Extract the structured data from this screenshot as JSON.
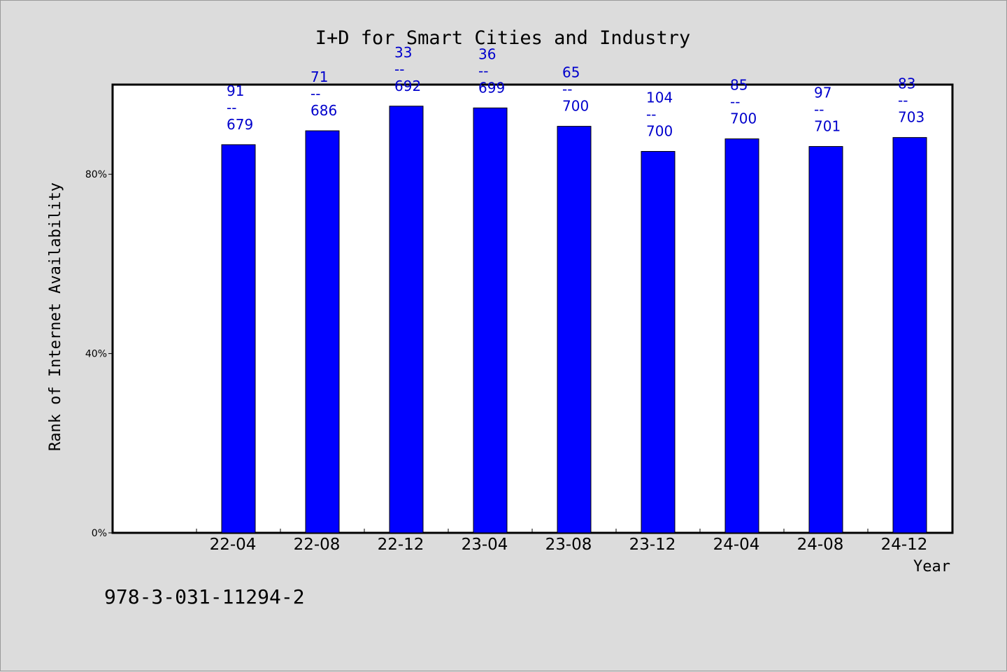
{
  "footer_code": "978-3-031-11294-2",
  "chart_data": {
    "type": "bar",
    "title": "I+D for Smart Cities and Industry",
    "xlabel": "Year",
    "ylabel": "Rank of Internet Availability",
    "categories": [
      "22-04",
      "22-08",
      "22-12",
      "23-04",
      "23-08",
      "23-12",
      "24-04",
      "24-08",
      "24-12"
    ],
    "values": [
      86.6,
      89.7,
      95.2,
      94.8,
      90.7,
      85.1,
      87.9,
      86.2,
      88.2
    ],
    "data_labels": [
      [
        "91",
        "--",
        "679"
      ],
      [
        "71",
        "--",
        "686"
      ],
      [
        "33",
        "--",
        "692"
      ],
      [
        "36",
        "--",
        "699"
      ],
      [
        "65",
        "--",
        "700"
      ],
      [
        "104",
        "--",
        "700"
      ],
      [
        "85",
        "--",
        "700"
      ],
      [
        "97",
        "--",
        "701"
      ],
      [
        "83",
        "--",
        "703"
      ]
    ],
    "yticks": [
      {
        "value": 0,
        "label": "0%"
      },
      {
        "value": 40,
        "label": "40%"
      },
      {
        "value": 80,
        "label": "80%"
      }
    ],
    "ylim": [
      0,
      100
    ],
    "grid": false,
    "legend": "none",
    "colors": {
      "bar": "#0000ff",
      "data_label": "#0000cc",
      "plot_bg": "#ffffff",
      "page_bg": "#dcdcdc"
    }
  }
}
